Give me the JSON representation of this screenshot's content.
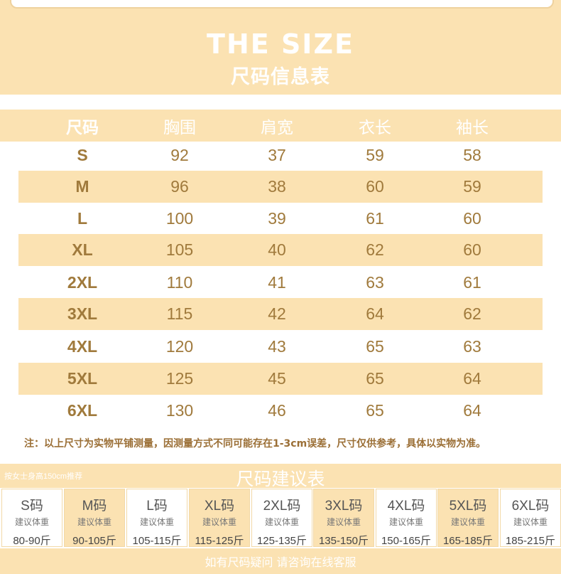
{
  "header": {
    "title_en": "THE SIZE",
    "title_cn": "尺码信息表"
  },
  "table": {
    "columns": [
      "尺码",
      "胸围",
      "肩宽",
      "衣长",
      "袖长"
    ],
    "rows": [
      [
        "S",
        "92",
        "37",
        "59",
        "58"
      ],
      [
        "M",
        "96",
        "38",
        "60",
        "59"
      ],
      [
        "L",
        "100",
        "39",
        "61",
        "60"
      ],
      [
        "XL",
        "105",
        "40",
        "62",
        "60"
      ],
      [
        "2XL",
        "110",
        "41",
        "63",
        "61"
      ],
      [
        "3XL",
        "115",
        "42",
        "64",
        "62"
      ],
      [
        "4XL",
        "120",
        "43",
        "65",
        "63"
      ],
      [
        "5XL",
        "125",
        "45",
        "65",
        "64"
      ],
      [
        "6XL",
        "130",
        "46",
        "65",
        "64"
      ]
    ]
  },
  "note": "注：以上尺寸为实物平铺测量，因测量方式不同可能存在1-3cm误差，尺寸仅供参考，具体以实物为准。",
  "recommend": {
    "subtitle": "按女士身高150cm推荐",
    "title": "尺码建议表",
    "items": [
      {
        "size": "S码",
        "label": "建议体重",
        "range": "80-90斤"
      },
      {
        "size": "M码",
        "label": "建议体重",
        "range": "90-105斤"
      },
      {
        "size": "L码",
        "label": "建议体重",
        "range": "105-115斤"
      },
      {
        "size": "XL码",
        "label": "建议体重",
        "range": "115-125斤"
      },
      {
        "size": "2XL码",
        "label": "建议体重",
        "range": "125-135斤"
      },
      {
        "size": "3XL码",
        "label": "建议体重",
        "range": "135-150斤"
      },
      {
        "size": "4XL码",
        "label": "建议体重",
        "range": "150-165斤"
      },
      {
        "size": "5XL码",
        "label": "建议体重",
        "range": "165-185斤"
      },
      {
        "size": "6XL码",
        "label": "建议体重",
        "range": "185-215斤"
      }
    ]
  },
  "footer": "如有尺码疑问 请咨询在线客服",
  "colors": {
    "band": "#fbe2b2",
    "text_gold": "#a07a3c",
    "white": "#ffffff"
  }
}
